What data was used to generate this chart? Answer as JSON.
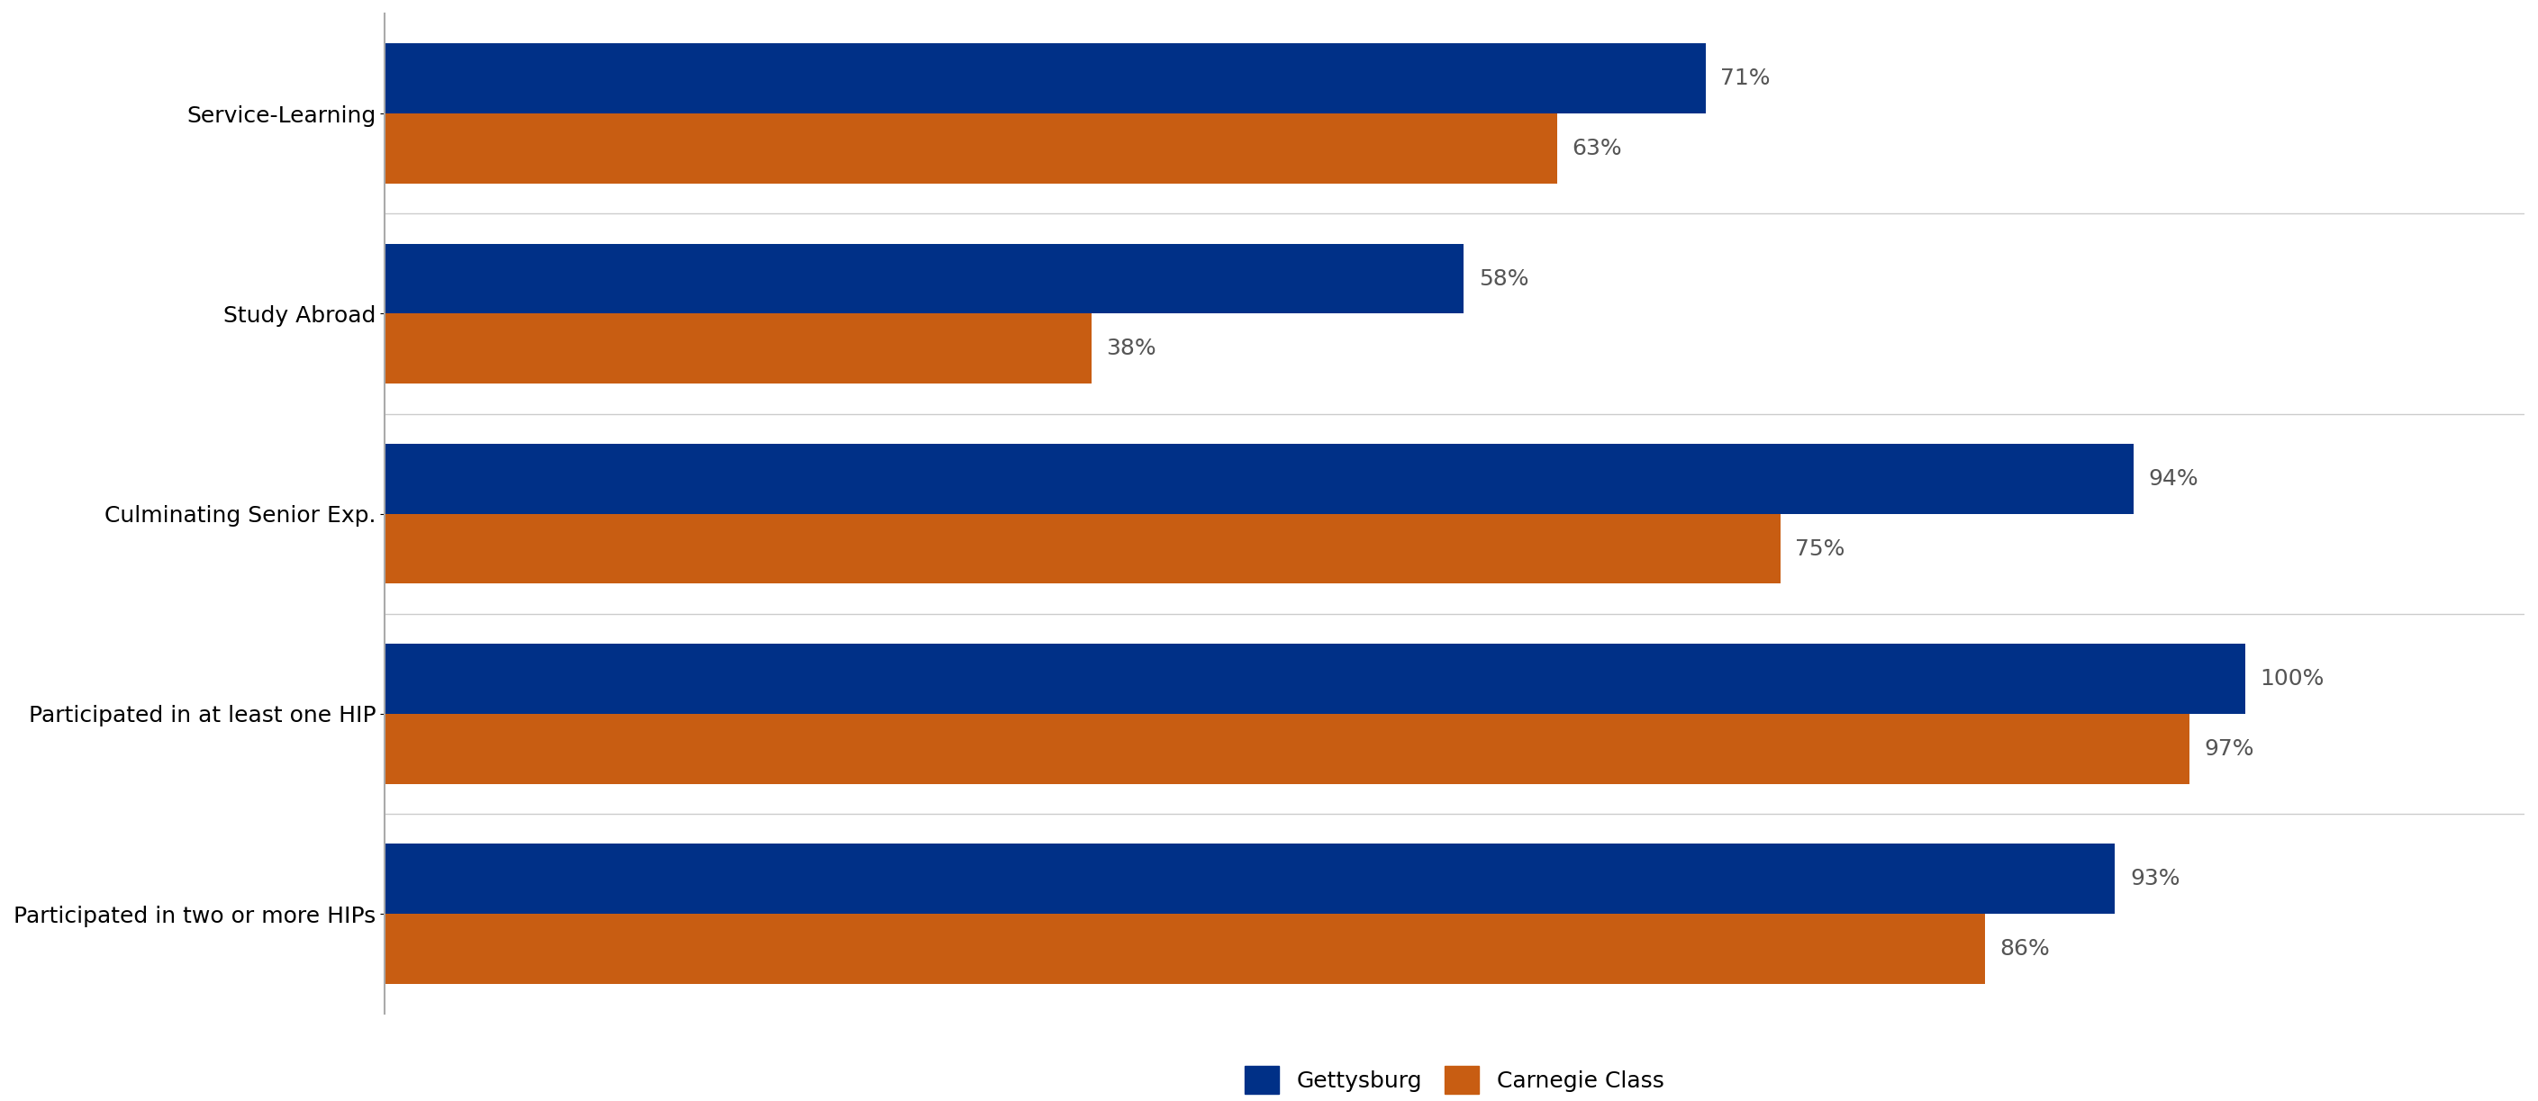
{
  "categories": [
    "Service-Learning",
    "Study Abroad",
    "Culminating Senior Exp.",
    "Participated in at least one HIP",
    "Participated in two or more HIPs"
  ],
  "gettysburg_values": [
    71,
    58,
    94,
    100,
    93
  ],
  "carnegie_values": [
    63,
    38,
    75,
    97,
    86
  ],
  "gettysburg_color": "#003087",
  "carnegie_color": "#C85D12",
  "bar_height": 0.35,
  "xlim": [
    0,
    115
  ],
  "legend_labels": [
    "Gettysburg",
    "Carnegie Class"
  ],
  "value_label_fontsize": 18,
  "category_label_fontsize": 18,
  "legend_fontsize": 18,
  "background_color": "#ffffff"
}
